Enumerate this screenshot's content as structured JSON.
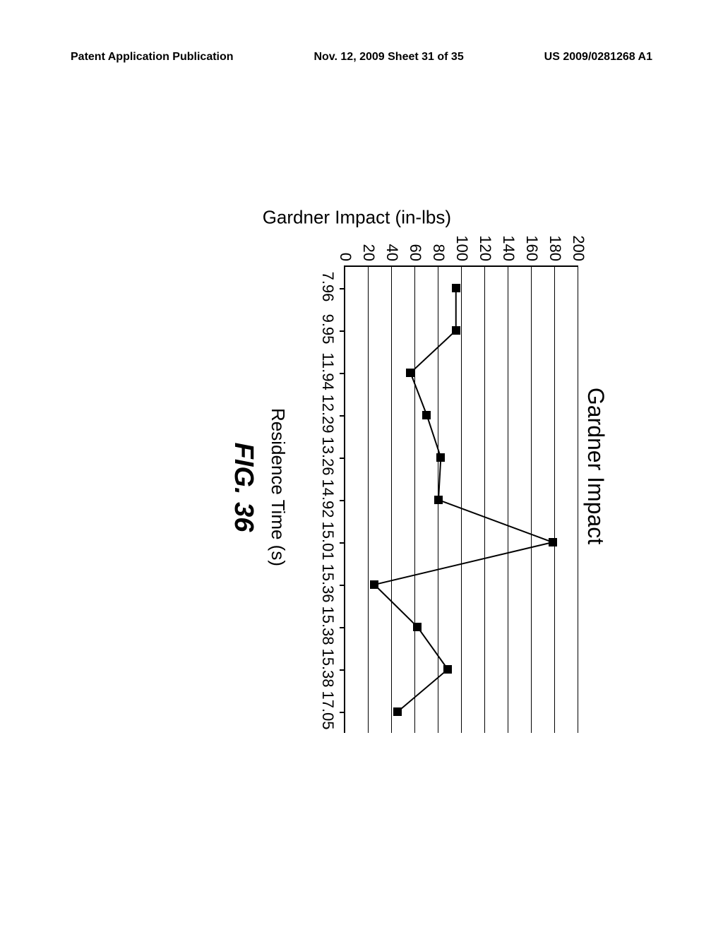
{
  "header": {
    "left": "Patent Application Publication",
    "center": "Nov. 12, 2009  Sheet 31 of 35",
    "right": "US 2009/0281268 A1"
  },
  "chart": {
    "type": "line",
    "title": "Gardner Impact",
    "ylabel": "Gardner Impact (in-lbs)",
    "xlabel": "Residence Time (s)",
    "figure_caption": "FIG. 36",
    "ylim": [
      0,
      200
    ],
    "ytick_step": 20,
    "yticks": [
      0,
      20,
      40,
      60,
      80,
      100,
      120,
      140,
      160,
      180,
      200
    ],
    "x_categories": [
      "7.96",
      "9.95",
      "11.94",
      "12.29",
      "13.26",
      "14.92",
      "15.01",
      "15.36",
      "15.38",
      "15.38",
      "17.05"
    ],
    "values": [
      95,
      95,
      56,
      70,
      82,
      80,
      178,
      25,
      62,
      88,
      45
    ],
    "line_color": "#000000",
    "line_width": 2,
    "marker_size": 10,
    "marker_color": "#000000",
    "grid_color": "#000000",
    "background_color": "#ffffff"
  }
}
